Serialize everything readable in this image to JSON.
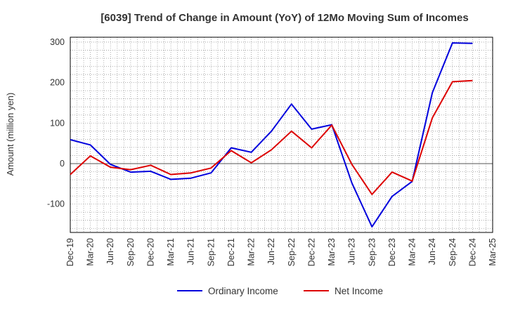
{
  "chart_data": {
    "type": "line",
    "title": "[6039]  Trend of Change in Amount (YoY) of 12Mo Moving Sum of Incomes",
    "ylabel": "Amount (million yen)",
    "xlabel": "",
    "ylim": [
      -170,
      312
    ],
    "yticks": [
      300,
      200,
      100,
      0,
      -100
    ],
    "x": [
      "Dec-19",
      "Mar-20",
      "Jun-20",
      "Sep-20",
      "Dec-20",
      "Mar-21",
      "Jun-21",
      "Sep-21",
      "Dec-21",
      "Mar-22",
      "Jun-22",
      "Sep-22",
      "Dec-22",
      "Mar-23",
      "Jun-23",
      "Sep-23",
      "Dec-23",
      "Mar-24",
      "Jun-24",
      "Sep-24",
      "Dec-24",
      "Mar-25"
    ],
    "series": [
      {
        "name": "Ordinary Income",
        "color": "#0000dd",
        "values": [
          59,
          46,
          -2,
          -21,
          -19,
          -39,
          -36,
          -23,
          39,
          28,
          80,
          147,
          85,
          96,
          -48,
          -156,
          -81,
          -44,
          175,
          298,
          297,
          null
        ]
      },
      {
        "name": "Net Income",
        "color": "#dd0000",
        "values": [
          -27,
          19,
          -9,
          -15,
          -4,
          -27,
          -23,
          -11,
          32,
          2,
          34,
          80,
          39,
          95,
          -2,
          -76,
          -21,
          -43,
          113,
          202,
          205,
          null
        ]
      }
    ],
    "grid": true,
    "legend_position": "bottom-center"
  }
}
